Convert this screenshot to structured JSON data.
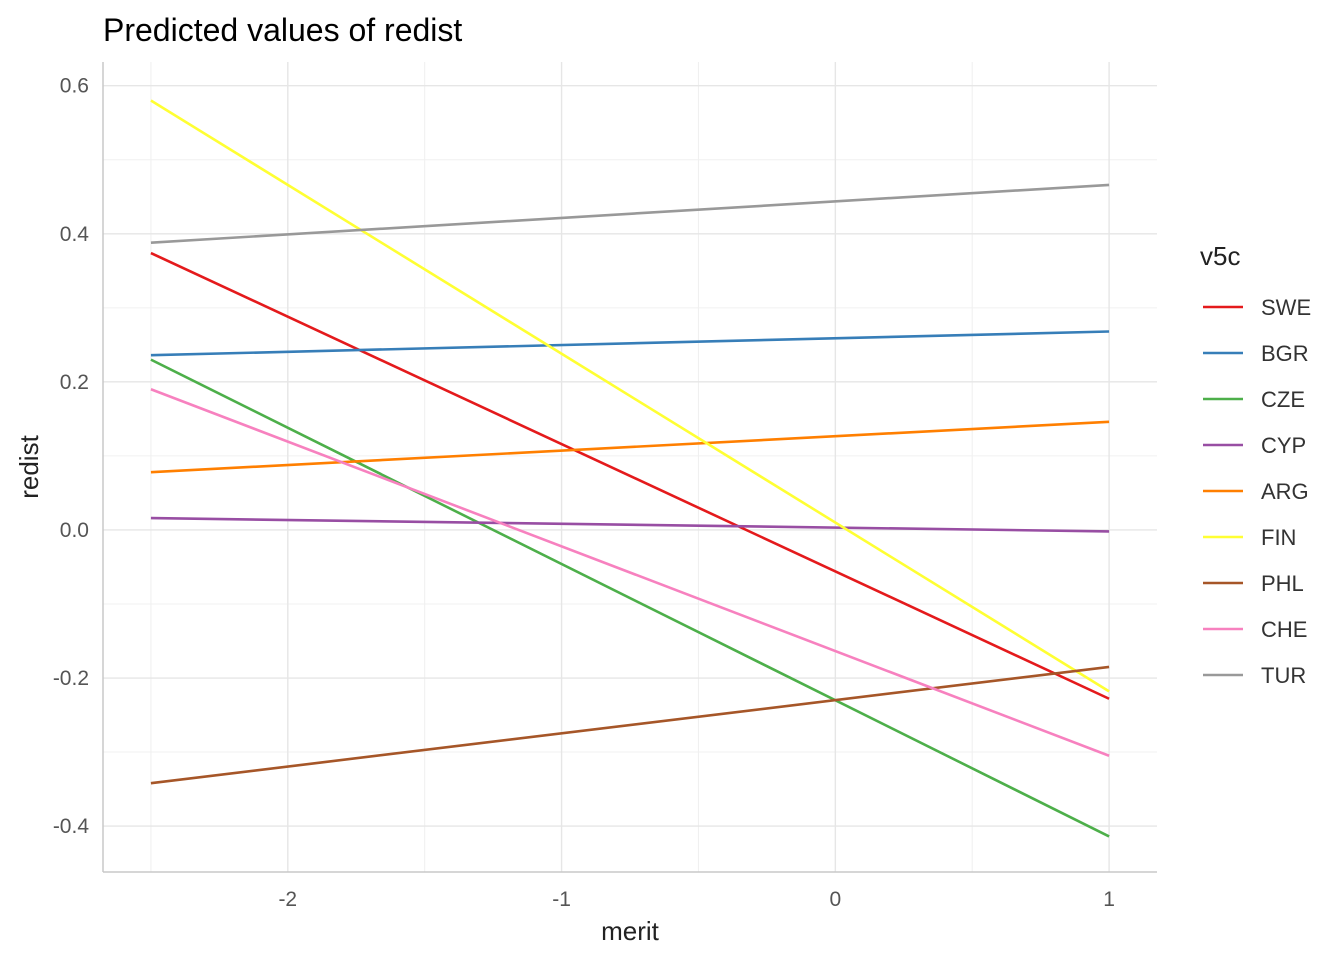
{
  "chart_data": {
    "type": "line",
    "title": "Predicted values of redist",
    "xlabel": "merit",
    "ylabel": "redist",
    "xlim": [
      -2.675,
      1.175
    ],
    "ylim": [
      -0.462,
      0.632
    ],
    "x_ticks": [
      -2,
      -1,
      0,
      1
    ],
    "x_tick_labels": [
      "-2",
      "-1",
      "0",
      "1"
    ],
    "y_ticks": [
      0.6,
      0.4,
      0.2,
      0.0,
      -0.2,
      -0.4
    ],
    "y_tick_labels": [
      "0.6",
      "0.4",
      "0.2",
      "0.0",
      "-0.2",
      "-0.4"
    ],
    "grid": true,
    "legend": {
      "title": "v5c",
      "position": "right"
    },
    "series": [
      {
        "name": "SWE",
        "color": "#E41A1C",
        "x": [
          -2.5,
          1
        ],
        "y": [
          0.374,
          -0.228
        ]
      },
      {
        "name": "BGR",
        "color": "#377EB8",
        "x": [
          -2.5,
          1
        ],
        "y": [
          0.236,
          0.268
        ]
      },
      {
        "name": "CZE",
        "color": "#4DAF4A",
        "x": [
          -2.5,
          1
        ],
        "y": [
          0.23,
          -0.414
        ]
      },
      {
        "name": "CYP",
        "color": "#984EA3",
        "x": [
          -2.5,
          1
        ],
        "y": [
          0.016,
          -0.002
        ]
      },
      {
        "name": "ARG",
        "color": "#FF7F00",
        "x": [
          -2.5,
          1
        ],
        "y": [
          0.078,
          0.146
        ]
      },
      {
        "name": "FIN",
        "color": "#FFFF33",
        "x": [
          -2.5,
          1
        ],
        "y": [
          0.58,
          -0.218
        ]
      },
      {
        "name": "PHL",
        "color": "#A65628",
        "x": [
          -2.5,
          1
        ],
        "y": [
          -0.342,
          -0.185
        ]
      },
      {
        "name": "CHE",
        "color": "#F781BF",
        "x": [
          -2.5,
          1
        ],
        "y": [
          0.19,
          -0.305
        ]
      },
      {
        "name": "TUR",
        "color": "#999999",
        "x": [
          -2.5,
          1
        ],
        "y": [
          0.388,
          0.466
        ]
      }
    ]
  }
}
